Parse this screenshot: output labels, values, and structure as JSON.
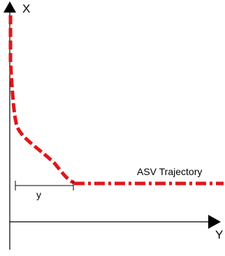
{
  "axes": {
    "vertical_label": "X",
    "horizontal_label": "Y"
  },
  "trajectory": {
    "label": "ASV Trajectory",
    "color": "#e0161b"
  },
  "dimension": {
    "label": "y"
  }
}
